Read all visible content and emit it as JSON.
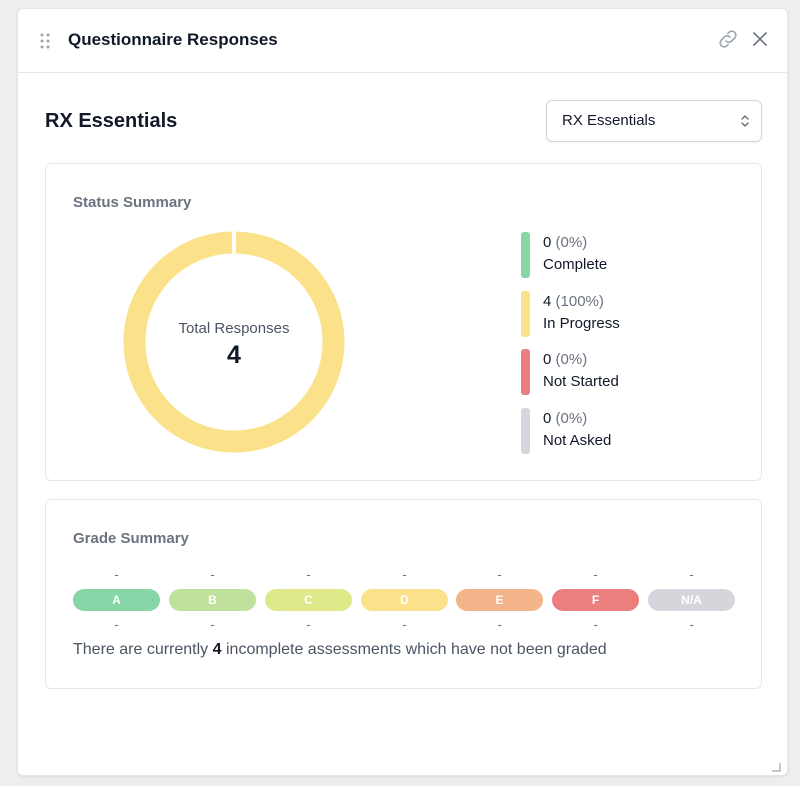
{
  "panel": {
    "title": "Questionnaire Responses"
  },
  "header": {
    "title": "RX Essentials",
    "select_value": "RX Essentials"
  },
  "status_summary": {
    "title": "Status Summary",
    "total_label": "Total Responses",
    "total_value": "4",
    "items": [
      {
        "count": "0",
        "pct": "(0%)",
        "label": "Complete",
        "color": "#86d6a8",
        "value": 0
      },
      {
        "count": "4",
        "pct": "(100%)",
        "label": "In Progress",
        "color": "#fbe28a",
        "value": 4
      },
      {
        "count": "0",
        "pct": "(0%)",
        "label": "Not Started",
        "color": "#eb7f7d",
        "value": 0
      },
      {
        "count": "0",
        "pct": "(0%)",
        "label": "Not Asked",
        "color": "#d4d6db",
        "value": 0
      }
    ]
  },
  "grade_summary": {
    "title": "Grade Summary",
    "grades": [
      {
        "label": "A",
        "top": "-",
        "bottom": "-",
        "color": "#86d6a8"
      },
      {
        "label": "B",
        "top": "-",
        "bottom": "-",
        "color": "#bfe19b"
      },
      {
        "label": "C",
        "top": "-",
        "bottom": "-",
        "color": "#dfe98a"
      },
      {
        "label": "D",
        "top": "-",
        "bottom": "-",
        "color": "#fbe28a"
      },
      {
        "label": "E",
        "top": "-",
        "bottom": "-",
        "color": "#f3b48a"
      },
      {
        "label": "F",
        "top": "-",
        "bottom": "-",
        "color": "#eb7f7d"
      },
      {
        "label": "N/A",
        "top": "-",
        "bottom": "-",
        "color": "#d4d6db"
      }
    ],
    "note_prefix": "There are currently",
    "note_count": "4",
    "note_suffix": "incomplete assessments which have not been graded"
  },
  "icons": [
    "drag-handle-icon",
    "link-icon",
    "close-icon",
    "chevron-up-down-icon",
    "resize-handle-icon"
  ]
}
